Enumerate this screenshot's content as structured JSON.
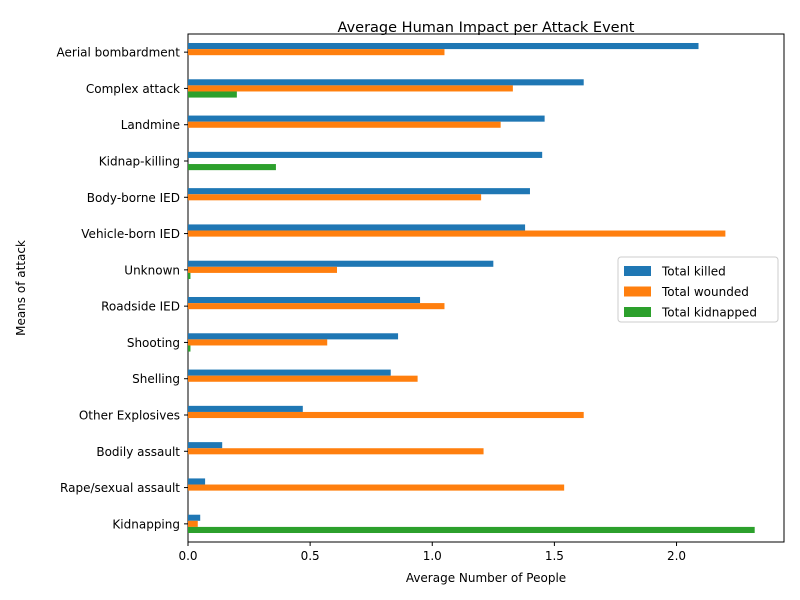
{
  "chart_data": {
    "type": "bar",
    "orientation": "horizontal",
    "title": "Average Human Impact per Attack Event",
    "xlabel": "Average Number of People",
    "ylabel": "Means of attack",
    "xlim": [
      0,
      2.44
    ],
    "x_ticks": [
      "0.0",
      "0.5",
      "1.0",
      "1.5",
      "2.0"
    ],
    "x_tick_values": [
      0,
      0.5,
      1.0,
      1.5,
      2.0
    ],
    "grid": false,
    "legend_position": "center-right",
    "categories": [
      "Aerial bombardment",
      "Complex attack",
      "Landmine",
      "Kidnap-killing",
      "Body-borne IED",
      "Vehicle-born IED",
      "Unknown",
      "Roadside IED",
      "Shooting",
      "Shelling",
      "Other Explosives",
      "Bodily assault",
      "Rape/sexual assault",
      "Kidnapping"
    ],
    "series": [
      {
        "name": "Total killed",
        "color": "#1f77b4",
        "values": [
          2.09,
          1.62,
          1.46,
          1.45,
          1.4,
          1.38,
          1.25,
          0.95,
          0.86,
          0.83,
          0.47,
          0.14,
          0.07,
          0.05
        ]
      },
      {
        "name": "Total wounded",
        "color": "#ff7f0e",
        "values": [
          1.05,
          1.33,
          1.28,
          0.0,
          1.2,
          2.2,
          0.61,
          1.05,
          0.57,
          0.94,
          1.62,
          1.21,
          1.54,
          0.04
        ]
      },
      {
        "name": "Total kidnapped",
        "color": "#2ca02c",
        "values": [
          0.0,
          0.2,
          0.0,
          0.36,
          0.0,
          0.0,
          0.01,
          0.0,
          0.01,
          0.0,
          0.0,
          0.0,
          0.0,
          2.32
        ]
      }
    ]
  }
}
